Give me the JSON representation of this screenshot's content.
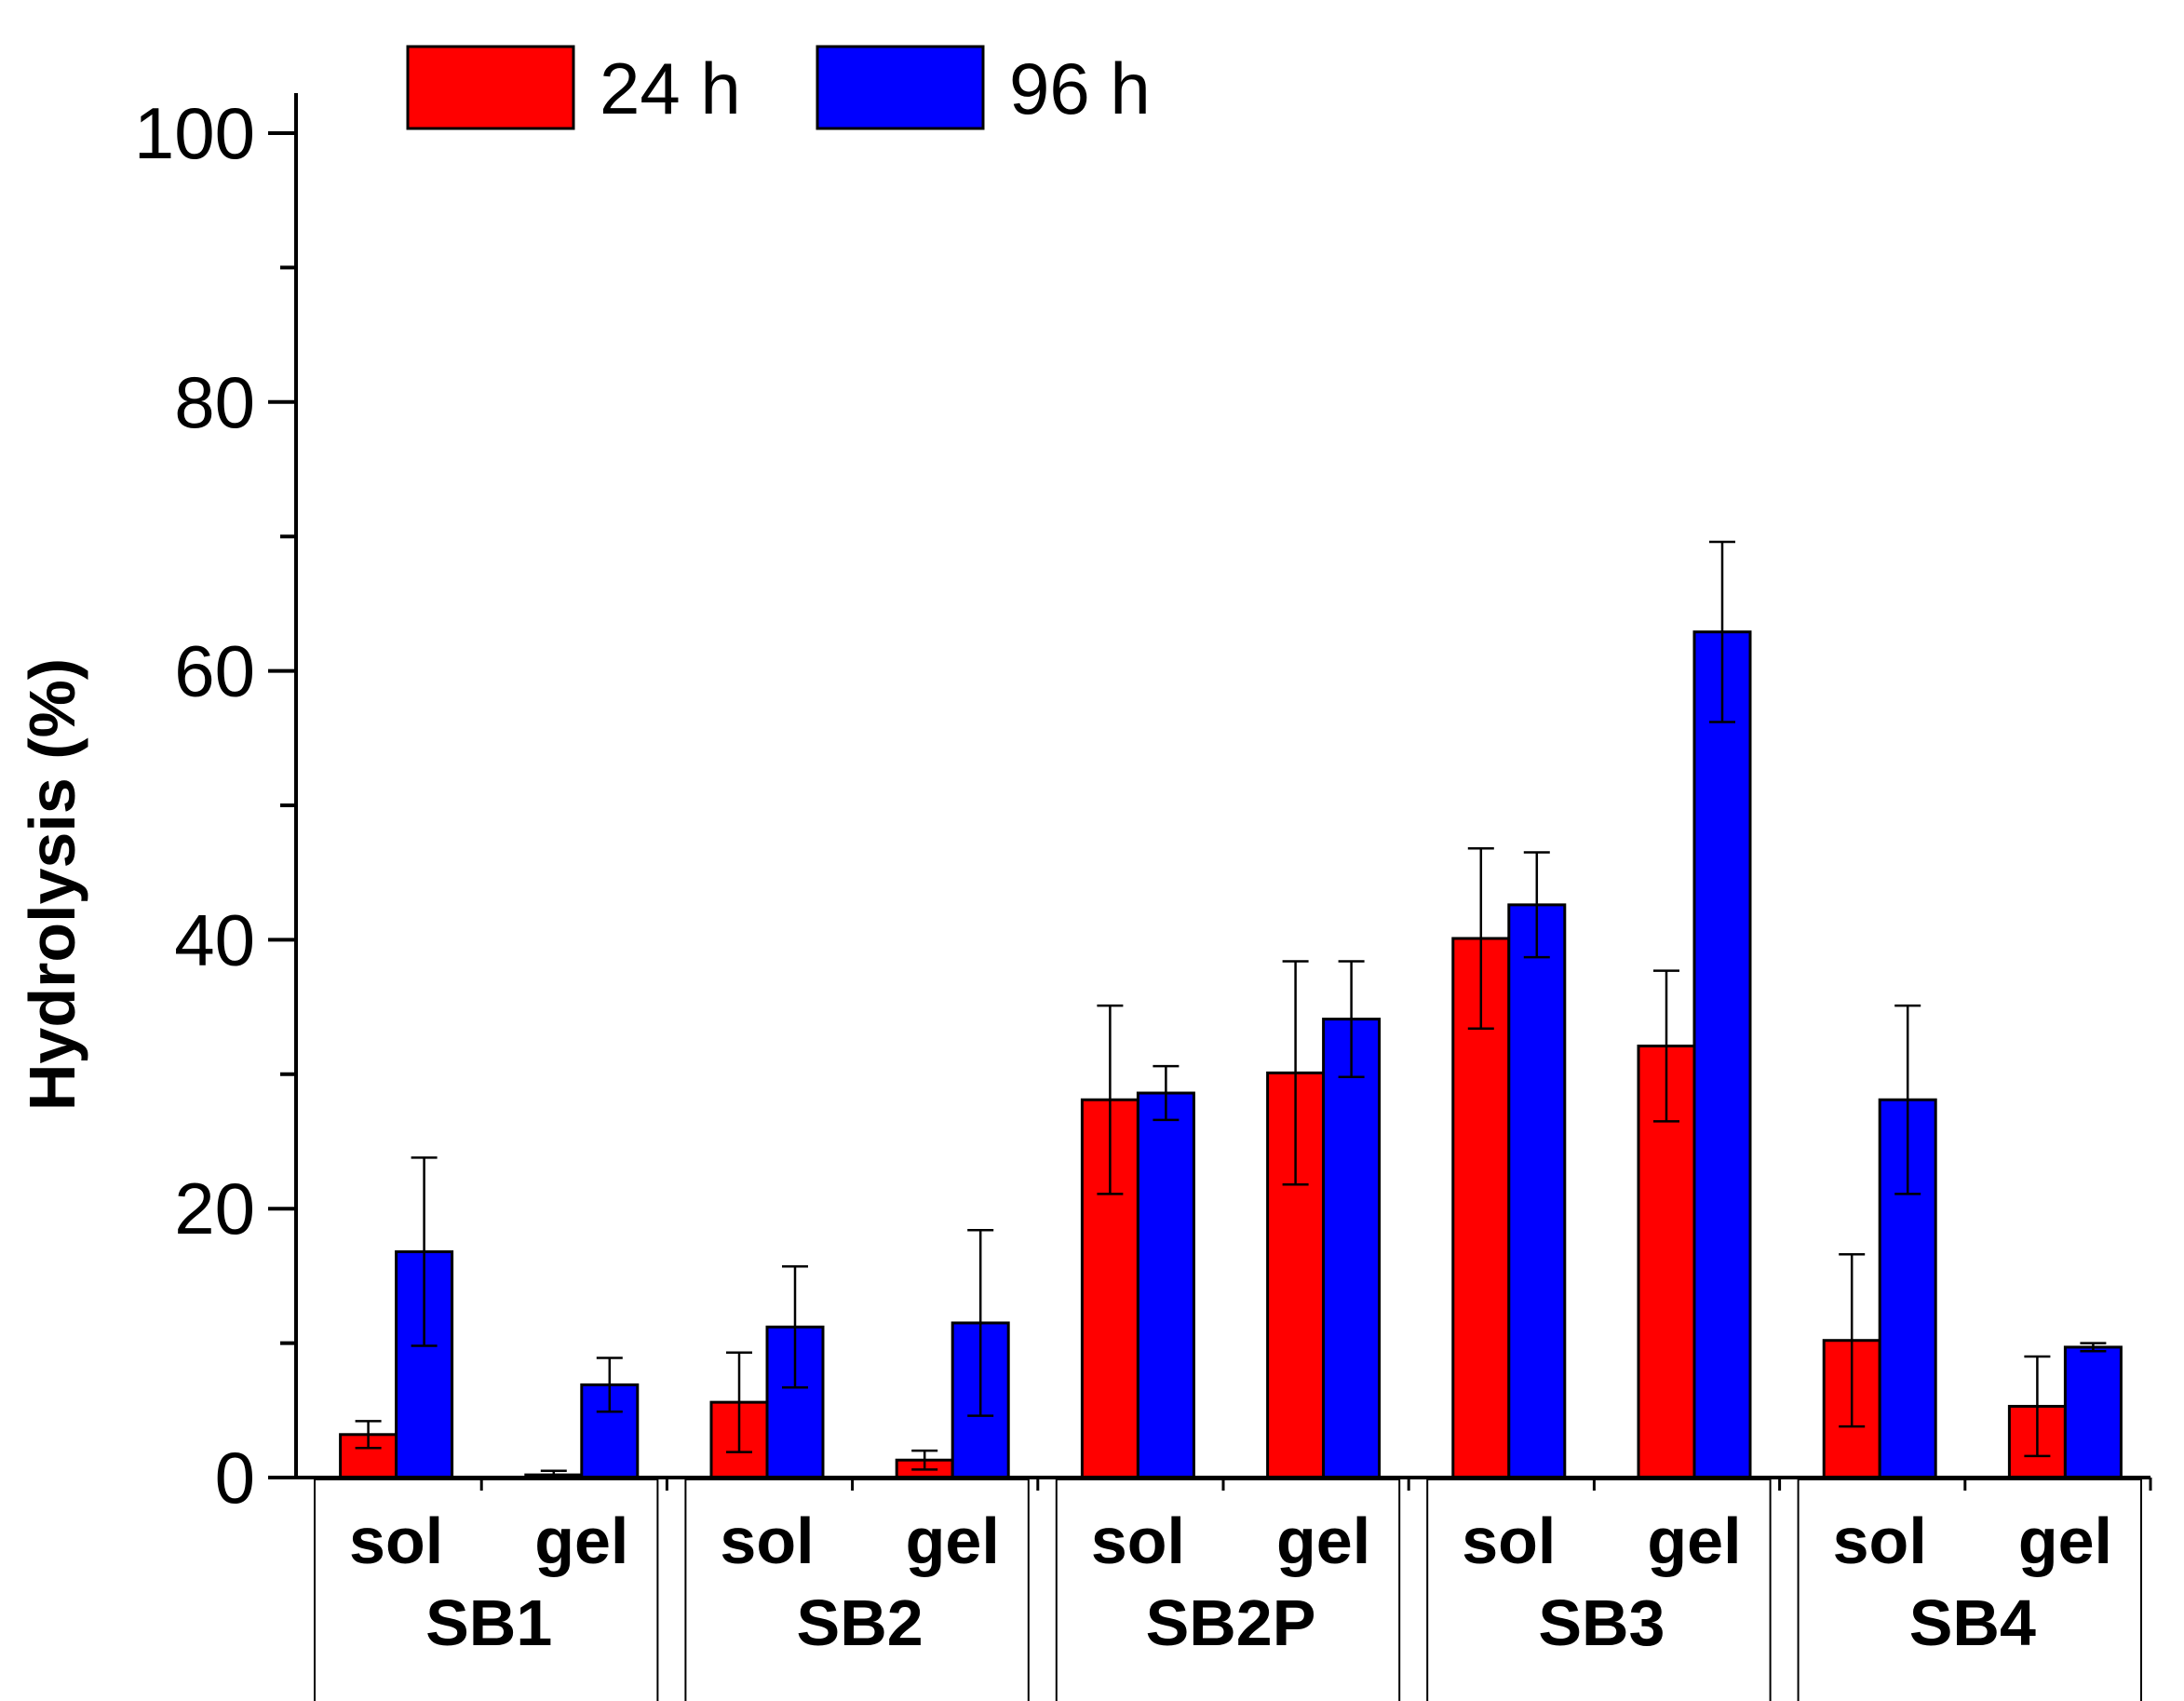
{
  "chart_data": {
    "type": "bar",
    "title": "",
    "xlabel": "",
    "ylabel": "Hydrolysis (%)",
    "ylim": [
      0,
      100
    ],
    "yticks": [
      0,
      20,
      40,
      60,
      80,
      100
    ],
    "grid": false,
    "legend_position": "top",
    "groups": [
      "SB1",
      "SB2",
      "SB2P",
      "SB3",
      "SB4"
    ],
    "subcategories": [
      "sol",
      "gel"
    ],
    "series": [
      {
        "name": "24 h",
        "color": "#ff0000",
        "values": [
          3.2,
          0.2,
          5.6,
          1.3,
          28.1,
          30.1,
          40.1,
          32.1,
          10.2,
          5.3
        ],
        "errors": [
          1.0,
          0.3,
          3.7,
          0.7,
          7.0,
          8.3,
          6.7,
          5.6,
          6.4,
          3.7
        ]
      },
      {
        "name": "96 h",
        "color": "#0000ff",
        "values": [
          16.8,
          6.9,
          11.2,
          11.5,
          28.6,
          34.1,
          42.6,
          62.9,
          28.1,
          9.7
        ],
        "errors": [
          7.0,
          2.0,
          4.5,
          6.9,
          2.0,
          4.3,
          3.9,
          6.7,
          7.0,
          0.3
        ]
      }
    ]
  }
}
